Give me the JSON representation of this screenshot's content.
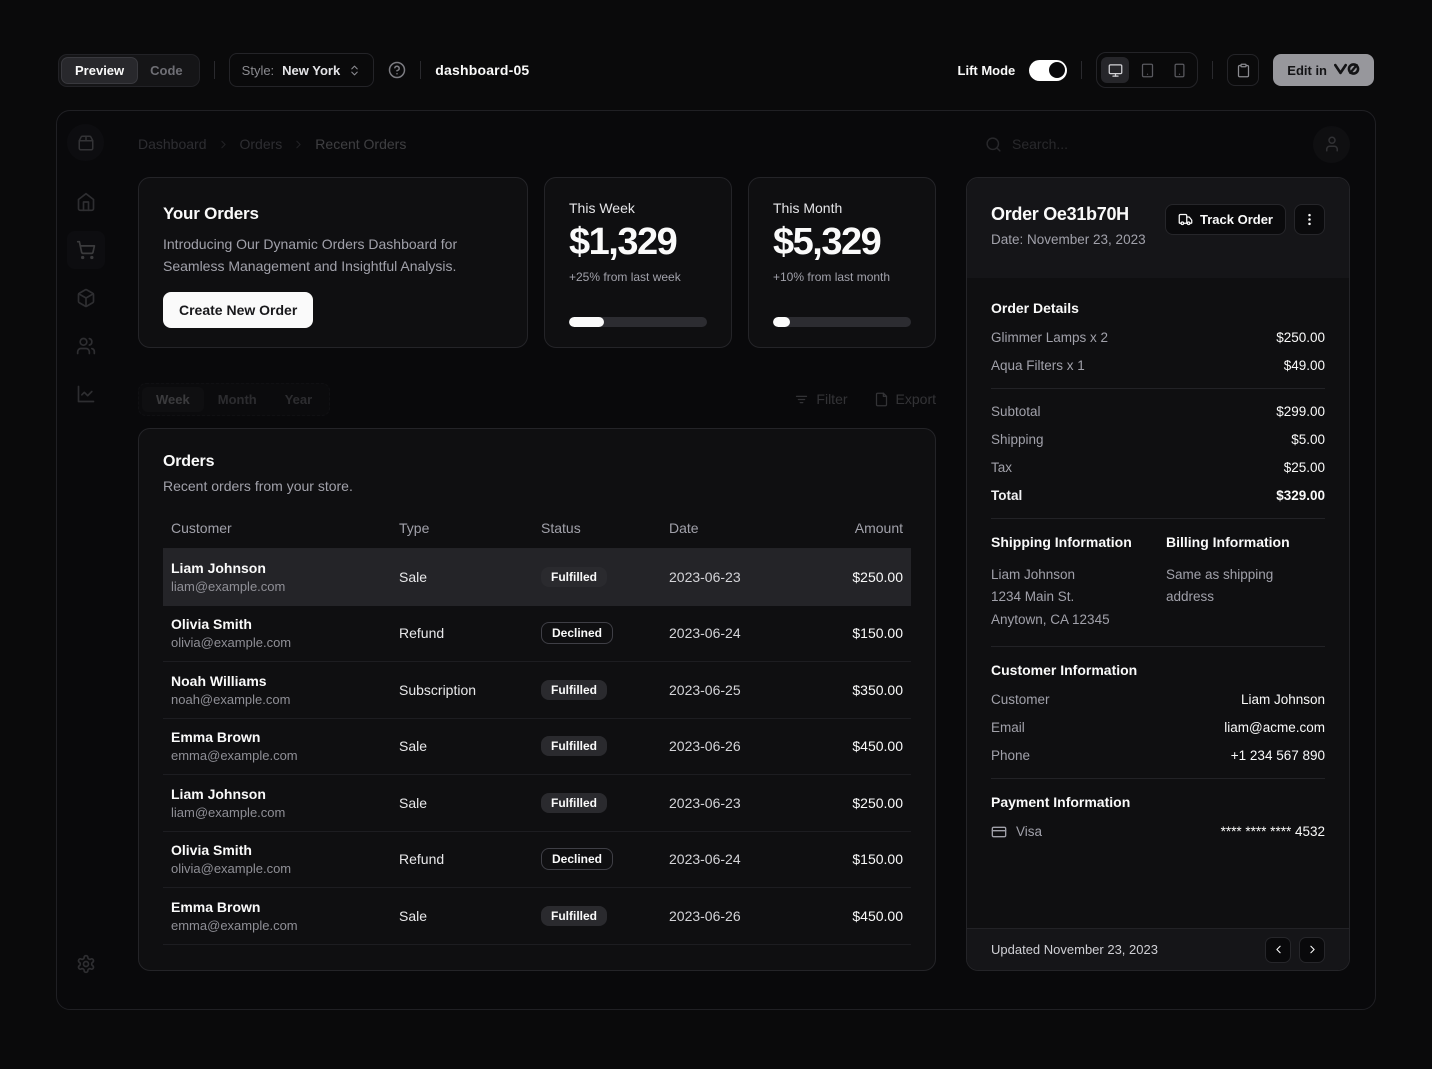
{
  "toolbar": {
    "view_tabs": {
      "preview": "Preview",
      "code": "Code"
    },
    "style_label": "Style:",
    "style_value": "New York",
    "page_name": "dashboard-05",
    "lift_mode_label": "Lift Mode",
    "lift_mode_on": true,
    "device_options": [
      "desktop",
      "tablet",
      "phone"
    ],
    "active_device": "desktop",
    "edit_button_label": "Edit in",
    "edit_button_brand": "v0"
  },
  "dashboard": {
    "breadcrumb": [
      "Dashboard",
      "Orders",
      "Recent Orders"
    ],
    "search_placeholder": "Search...",
    "promo_card": {
      "title": "Your Orders",
      "description": "Introducing Our Dynamic Orders Dashboard for Seamless Management and Insightful Analysis.",
      "button_label": "Create New Order"
    },
    "stat_cards": [
      {
        "label": "This Week",
        "value": "$1,329",
        "change": "+25% from last week",
        "progress_percent": 25
      },
      {
        "label": "This Month",
        "value": "$5,329",
        "change": "+10% from last month",
        "progress_percent": 12
      }
    ],
    "period_tabs": [
      "Week",
      "Month",
      "Year"
    ],
    "active_period": "Week",
    "filter_label": "Filter",
    "export_label": "Export",
    "orders_table": {
      "title": "Orders",
      "description": "Recent orders from your store.",
      "columns": [
        "Customer",
        "Type",
        "Status",
        "Date",
        "Amount"
      ],
      "rows": [
        {
          "customer_name": "Liam Johnson",
          "customer_email": "liam@example.com",
          "type": "Sale",
          "status": "Fulfilled",
          "date": "2023-06-23",
          "amount": "$250.00",
          "selected": true
        },
        {
          "customer_name": "Olivia Smith",
          "customer_email": "olivia@example.com",
          "type": "Refund",
          "status": "Declined",
          "date": "2023-06-24",
          "amount": "$150.00",
          "selected": false
        },
        {
          "customer_name": "Noah Williams",
          "customer_email": "noah@example.com",
          "type": "Subscription",
          "status": "Fulfilled",
          "date": "2023-06-25",
          "amount": "$350.00",
          "selected": false
        },
        {
          "customer_name": "Emma Brown",
          "customer_email": "emma@example.com",
          "type": "Sale",
          "status": "Fulfilled",
          "date": "2023-06-26",
          "amount": "$450.00",
          "selected": false
        },
        {
          "customer_name": "Liam Johnson",
          "customer_email": "liam@example.com",
          "type": "Sale",
          "status": "Fulfilled",
          "date": "2023-06-23",
          "amount": "$250.00",
          "selected": false
        },
        {
          "customer_name": "Olivia Smith",
          "customer_email": "olivia@example.com",
          "type": "Refund",
          "status": "Declined",
          "date": "2023-06-24",
          "amount": "$150.00",
          "selected": false
        },
        {
          "customer_name": "Emma Brown",
          "customer_email": "emma@example.com",
          "type": "Sale",
          "status": "Fulfilled",
          "date": "2023-06-26",
          "amount": "$450.00",
          "selected": false
        }
      ]
    },
    "order_panel": {
      "title": "Order Oe31b70H",
      "date": "Date: November 23, 2023",
      "track_button_label": "Track Order",
      "details_title": "Order Details",
      "items": [
        {
          "label": "Glimmer Lamps x 2",
          "value": "$250.00"
        },
        {
          "label": "Aqua Filters x 1",
          "value": "$49.00"
        }
      ],
      "summary": [
        {
          "label": "Subtotal",
          "value": "$299.00"
        },
        {
          "label": "Shipping",
          "value": "$5.00"
        },
        {
          "label": "Tax",
          "value": "$25.00"
        },
        {
          "label": "Total",
          "value": "$329.00"
        }
      ],
      "shipping_title": "Shipping Information",
      "shipping_lines": [
        "Liam Johnson",
        "1234 Main St.",
        "Anytown, CA 12345"
      ],
      "billing_title": "Billing Information",
      "billing_text": "Same as shipping address",
      "customer_title": "Customer Information",
      "customer_rows": [
        {
          "label": "Customer",
          "value": "Liam Johnson"
        },
        {
          "label": "Email",
          "value": "liam@acme.com"
        },
        {
          "label": "Phone",
          "value": "+1 234 567 890"
        }
      ],
      "payment_title": "Payment Information",
      "payment_method": "Visa",
      "payment_number": "**** **** **** 4532",
      "footer_text": "Updated November 23, 2023"
    }
  },
  "icons": [
    "package2",
    "home",
    "shopping-cart",
    "package",
    "users",
    "line-chart",
    "settings",
    "search",
    "user",
    "monitor",
    "tablet",
    "smartphone",
    "clipboard",
    "help-circle",
    "chevrons-up-down",
    "filter-lines",
    "file",
    "truck",
    "more-vertical",
    "credit-card",
    "chevron-left",
    "chevron-right",
    "chevron-right-breadcrumb"
  ],
  "colors": {
    "page_background": "#0a0a0b",
    "card_background": "#0f0f11",
    "card_border": "#242428",
    "accent": "#fafafa",
    "muted_text": "#a1a1aa",
    "selected_row": "#242428",
    "panel_strip": "#151518"
  }
}
